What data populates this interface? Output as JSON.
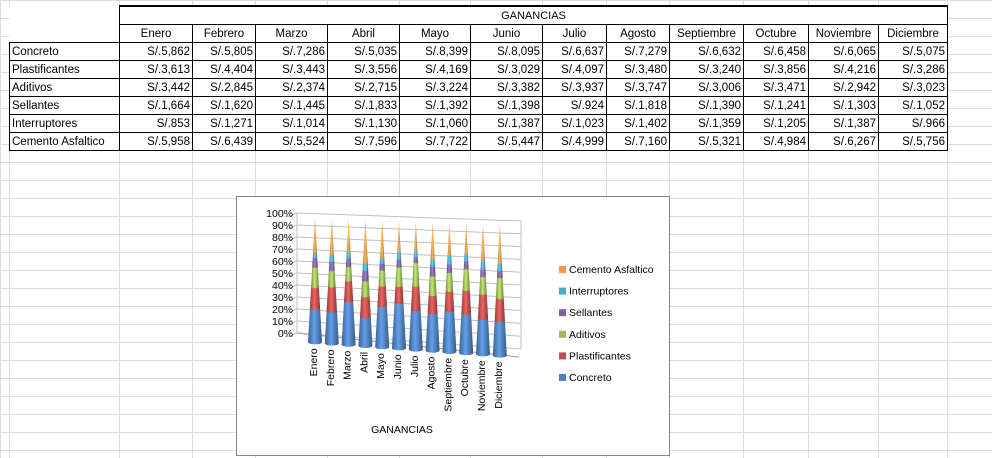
{
  "table": {
    "title": "GANANCIAS",
    "months": [
      "Enero",
      "Febrero",
      "Marzo",
      "Abril",
      "Mayo",
      "Junio",
      "Julio",
      "Agosto",
      "Septiembre",
      "Octubre",
      "Noviembre",
      "Diciembre"
    ],
    "rows": [
      {
        "label": "Concreto",
        "values": [
          "S/.5,862",
          "S/.5,805",
          "S/.7,286",
          "S/.5,035",
          "S/.8,399",
          "S/.8,095",
          "S/.6,637",
          "S/.7,279",
          "S/.6,632",
          "S/.6,458",
          "S/.6,065",
          "S/.5,075"
        ]
      },
      {
        "label": "Plastificantes",
        "values": [
          "S/.3,613",
          "S/.4,404",
          "S/.3,443",
          "S/.3,556",
          "S/.4,169",
          "S/.3,029",
          "S/.4,097",
          "S/.3,480",
          "S/.3,240",
          "S/.3,856",
          "S/.4,216",
          "S/.3,286"
        ]
      },
      {
        "label": "Aditivos",
        "values": [
          "S/.3,442",
          "S/.2,845",
          "S/.2,374",
          "S/.2,715",
          "S/.3,224",
          "S/.3,382",
          "S/.3,937",
          "S/.3,747",
          "S/.3,006",
          "S/.3,471",
          "S/.2,942",
          "S/.3,023"
        ]
      },
      {
        "label": "Sellantes",
        "values": [
          "S/.1,664",
          "S/.1,620",
          "S/.1,445",
          "S/.1,833",
          "S/.1,392",
          "S/.1,398",
          "S/.924",
          "S/.1,818",
          "S/.1,390",
          "S/.1,241",
          "S/.1,303",
          "S/.1,052"
        ]
      },
      {
        "label": "Interruptores",
        "values": [
          "S/.853",
          "S/.1,271",
          "S/.1,014",
          "S/.1,130",
          "S/.1,060",
          "S/.1,387",
          "S/.1,023",
          "S/.1,402",
          "S/.1,359",
          "S/.1,205",
          "S/.1,387",
          "S/.966"
        ]
      },
      {
        "label": "Cemento Asfaltico",
        "values": [
          "S/.5,958",
          "S/.6,439",
          "S/.5,524",
          "S/.7,596",
          "S/.7,722",
          "S/.5,447",
          "S/.4,999",
          "S/.7,160",
          "S/.5,321",
          "S/.4,984",
          "S/.6,267",
          "S/.5,756"
        ]
      }
    ]
  },
  "chart_data": {
    "type": "bar",
    "stacked": "100%",
    "style": "3D cone",
    "title": "",
    "xlabel": "GANANCIAS",
    "ylabel": "",
    "ylim": [
      0,
      100
    ],
    "y_ticks": [
      "0%",
      "10%",
      "20%",
      "30%",
      "40%",
      "50%",
      "60%",
      "70%",
      "80%",
      "90%",
      "100%"
    ],
    "categories": [
      "Enero",
      "Febrero",
      "Marzo",
      "Abril",
      "Mayo",
      "Junio",
      "Julio",
      "Agosto",
      "Septiembre",
      "Octubre",
      "Noviembre",
      "Diciembre"
    ],
    "series": [
      {
        "name": "Concreto",
        "color": "#4f81bd",
        "values": [
          5862,
          5805,
          7286,
          5035,
          8399,
          8095,
          6637,
          7279,
          6632,
          6458,
          6065,
          5075
        ]
      },
      {
        "name": "Plastificantes",
        "color": "#c0504d",
        "values": [
          3613,
          4404,
          3443,
          3556,
          4169,
          3029,
          4097,
          3480,
          3240,
          3856,
          4216,
          3286
        ]
      },
      {
        "name": "Aditivos",
        "color": "#9bbb59",
        "values": [
          3442,
          2845,
          2374,
          2715,
          3224,
          3382,
          3937,
          3747,
          3006,
          3471,
          2942,
          3023
        ]
      },
      {
        "name": "Sellantes",
        "color": "#8064a2",
        "values": [
          1664,
          1620,
          1445,
          1833,
          1392,
          1398,
          924,
          1818,
          1390,
          1241,
          1303,
          1052
        ]
      },
      {
        "name": "Interruptores",
        "color": "#4bacc6",
        "values": [
          853,
          1271,
          1014,
          1130,
          1060,
          1387,
          1023,
          1402,
          1359,
          1205,
          1387,
          966
        ]
      },
      {
        "name": "Cemento Asfaltico",
        "color": "#f79646",
        "values": [
          5958,
          6439,
          5524,
          7596,
          7722,
          5447,
          4999,
          7160,
          5321,
          4984,
          6267,
          5756
        ]
      }
    ],
    "legend": "right"
  }
}
